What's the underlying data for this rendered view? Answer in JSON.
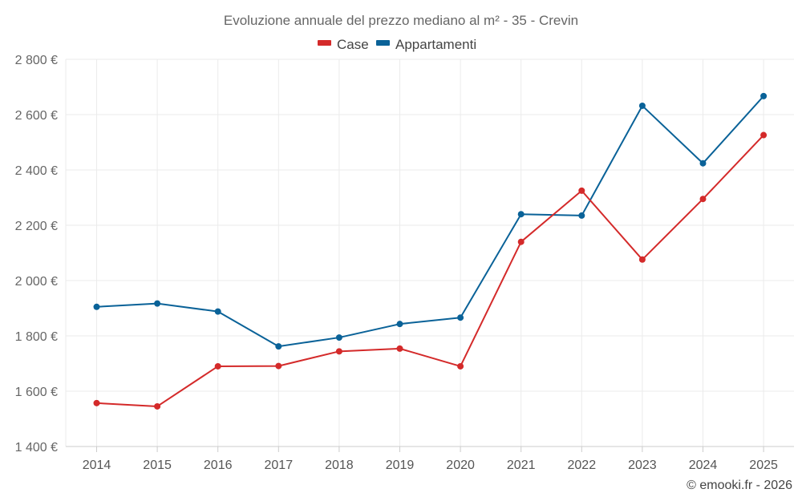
{
  "chart_data": {
    "type": "line",
    "title": "Evoluzione annuale del prezzo mediano al m² - 35 - Crevin",
    "categories": [
      "2014",
      "2015",
      "2016",
      "2017",
      "2018",
      "2019",
      "2020",
      "2021",
      "2022",
      "2023",
      "2024",
      "2025"
    ],
    "series": [
      {
        "name": "Case",
        "color": "#d42a2a",
        "values": [
          1557,
          1545,
          1690,
          1691,
          1744,
          1754,
          1690,
          2140,
          2325,
          2076,
          2295,
          2526
        ]
      },
      {
        "name": "Appartamenti",
        "color": "#0a6298",
        "values": [
          1905,
          1917,
          1888,
          1762,
          1794,
          1843,
          1866,
          2240,
          2235,
          2632,
          2424,
          2667
        ]
      }
    ],
    "ylim": [
      1400,
      2800
    ],
    "yticks": [
      1400,
      1600,
      1800,
      2000,
      2200,
      2400,
      2600,
      2800
    ],
    "ytick_labels": [
      "1 400 €",
      "1 600 €",
      "1 800 €",
      "2 000 €",
      "2 200 €",
      "2 400 €",
      "2 600 €",
      "2 800 €"
    ],
    "grid": true,
    "legend_position": "top-center",
    "credit": "© emooki.fr - 2026"
  }
}
